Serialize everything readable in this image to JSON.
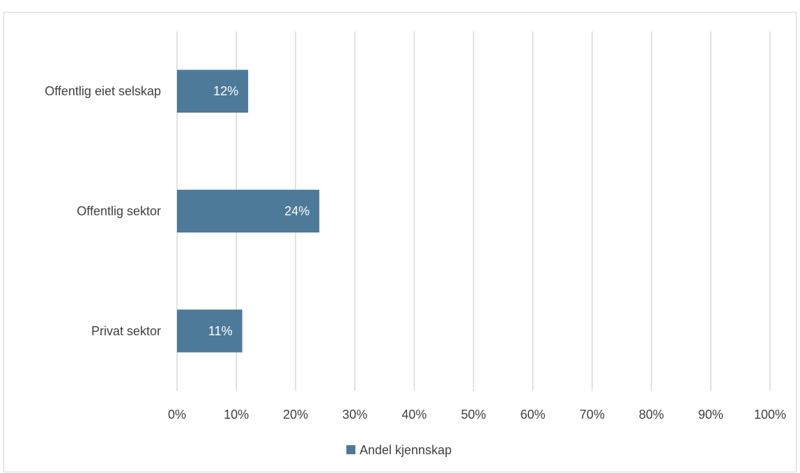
{
  "chart_data": {
    "type": "bar",
    "orientation": "horizontal",
    "categories": [
      "Offentlig eiet selskap",
      "Offentlig sektor",
      "Privat sektor"
    ],
    "series": [
      {
        "name": "Andel kjennskap",
        "values": [
          12,
          24,
          11
        ],
        "data_labels": [
          "12%",
          "24%",
          "11%"
        ],
        "color": "#4e7a9a"
      }
    ],
    "xlim": [
      0,
      100
    ],
    "x_ticks": [
      0,
      10,
      20,
      30,
      40,
      50,
      60,
      70,
      80,
      90,
      100
    ],
    "x_tick_labels": [
      "0%",
      "10%",
      "20%",
      "30%",
      "40%",
      "50%",
      "60%",
      "70%",
      "80%",
      "90%",
      "100%"
    ],
    "grid": true,
    "legend_position": "bottom",
    "colors": {
      "bar": "#4e7a9a",
      "grid": "#d9d9d9",
      "text": "#404040",
      "data_label": "#ffffff"
    }
  }
}
